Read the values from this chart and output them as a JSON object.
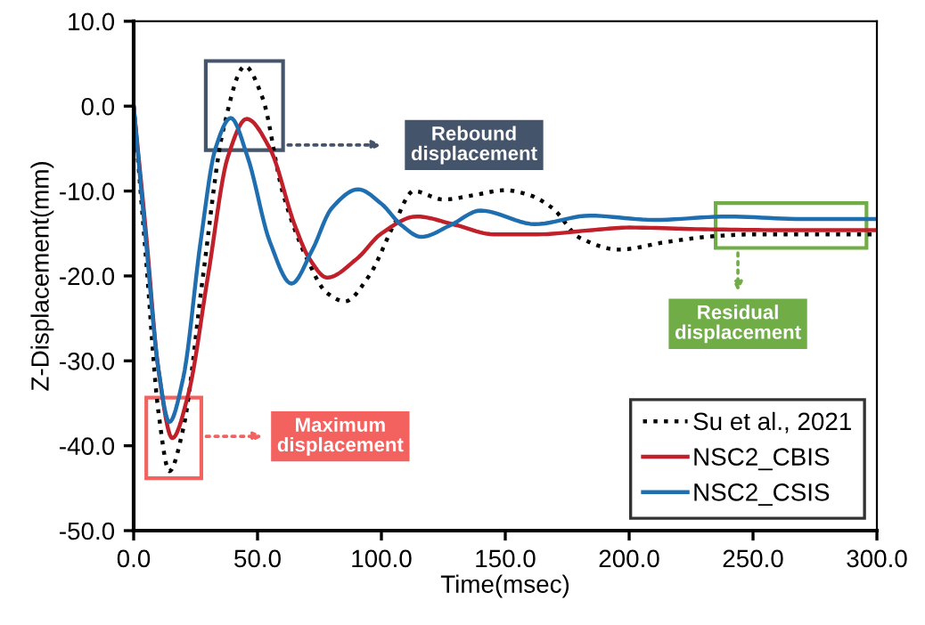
{
  "chart_data": {
    "type": "line",
    "xlabel": "Time(msec)",
    "ylabel": "Z-Displacement(mm)",
    "xlim": [
      0,
      300
    ],
    "ylim": [
      -50,
      10
    ],
    "xticks": [
      {
        "value": 0,
        "label": "0.0"
      },
      {
        "value": 50,
        "label": "50.0"
      },
      {
        "value": 100,
        "label": "100.0"
      },
      {
        "value": 150,
        "label": "150.0"
      },
      {
        "value": 200,
        "label": "200.0"
      },
      {
        "value": 250,
        "label": "250.0"
      },
      {
        "value": 300,
        "label": "300.0"
      }
    ],
    "yticks": [
      {
        "value": -50,
        "label": "-50.0"
      },
      {
        "value": -40,
        "label": "-40.0"
      },
      {
        "value": -30,
        "label": "-30.0"
      },
      {
        "value": -20,
        "label": "-20.0"
      },
      {
        "value": -10,
        "label": "-10.0"
      },
      {
        "value": 0,
        "label": "0.0"
      },
      {
        "value": 10,
        "label": "10.0"
      }
    ],
    "grid": false,
    "legend": "bottom right",
    "series": [
      {
        "name": "Su et al., 2021",
        "color": "#000000",
        "line_style": "dotted",
        "x": [
          0,
          5,
          10,
          14.4,
          20,
          28,
          36,
          44.9,
          52,
          60,
          70,
          78,
          85.3,
          95,
          105,
          113,
          125,
          137,
          150,
          160,
          169,
          180,
          196,
          215,
          235,
          250,
          275,
          300
        ],
        "values": [
          0,
          -18,
          -36,
          -43,
          -38,
          -20,
          -3,
          4.7,
          1,
          -10,
          -18,
          -22,
          -23,
          -20,
          -14,
          -10,
          -11,
          -10.5,
          -9.9,
          -10.5,
          -12,
          -15.5,
          -16.9,
          -16,
          -15.3,
          -15.1,
          -15.1,
          -15.1
        ]
      },
      {
        "name": "NSC2_CBIS",
        "color": "#c0202a",
        "line_style": "solid",
        "x": [
          0,
          5,
          10,
          15.6,
          22,
          30,
          38,
          45.6,
          55,
          65,
          71,
          78.1,
          90,
          100,
          114.2,
          130,
          145.4,
          163,
          185,
          200,
          230,
          260,
          300
        ],
        "values": [
          0,
          -15,
          -31,
          -39.1,
          -34,
          -20,
          -6,
          -1.5,
          -5,
          -14,
          -18,
          -20.2,
          -18,
          -15,
          -13,
          -14,
          -15.1,
          -15.1,
          -14.6,
          -14.3,
          -14.5,
          -14.6,
          -14.6
        ]
      },
      {
        "name": "NSC2_CSIS",
        "color": "#1f6fb0",
        "line_style": "solid",
        "x": [
          0,
          5,
          10,
          14.4,
          20,
          27,
          33,
          39.2,
          46,
          55,
          63.7,
          72,
          80,
          90.6,
          100,
          108,
          116.1,
          128,
          140,
          162,
          184,
          210,
          240,
          270,
          300
        ],
        "values": [
          0,
          -16,
          -31,
          -37.2,
          -32,
          -16,
          -5,
          -1.4,
          -6,
          -16,
          -20.9,
          -17,
          -12,
          -9.8,
          -11.5,
          -14,
          -15.4,
          -14,
          -12.3,
          -13.9,
          -12.9,
          -13.4,
          -13,
          -13.3,
          -13.3
        ]
      }
    ],
    "annotations": [
      "Rebound\ndisplacement",
      "Maximum\ndisplacement",
      "Residual\ndisplacement"
    ]
  }
}
